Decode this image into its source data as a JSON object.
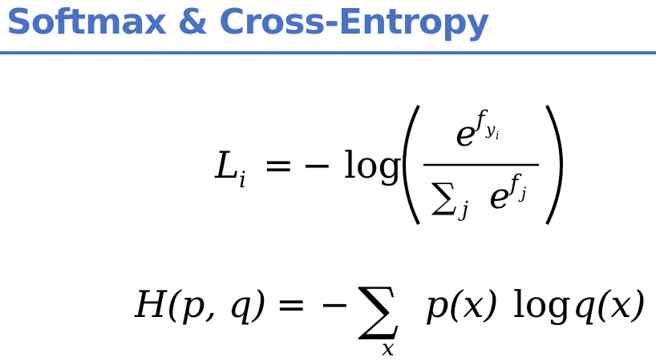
{
  "slide": {
    "title": "Softmax & Cross-Entropy",
    "accent_color": "#4a72c4"
  },
  "equation_1": {
    "lhs_var": "L",
    "lhs_sub": "i",
    "equals": "=",
    "minus_log": "− log",
    "num_base": "e",
    "num_exp": "f",
    "num_exp_sub": "y",
    "num_exp_subsub": "i",
    "den_sum": "∑",
    "den_sum_sub": "j",
    "den_base": "e",
    "den_exp": "f",
    "den_exp_sub": "j"
  },
  "equation_2": {
    "lhs": "H(p, q)",
    "equals": "=",
    "minus": "−",
    "sum": "∑",
    "sum_sub": "x",
    "term1": "p(x)",
    "log": "log",
    "term2": "q(x)"
  }
}
